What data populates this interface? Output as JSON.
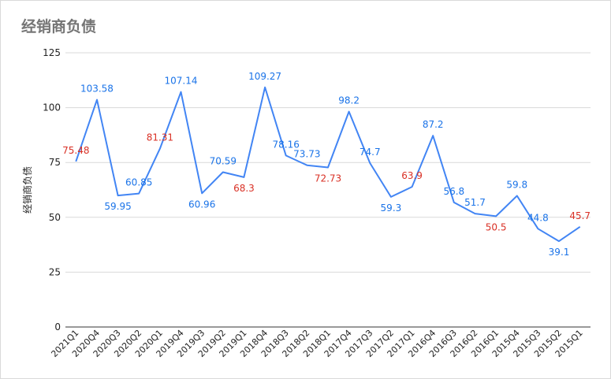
{
  "chart_data": {
    "type": "line",
    "title": "经销商负债",
    "ylabel": "经销商负债",
    "xlabel": "",
    "ylim": [
      0,
      125
    ],
    "yticks": [
      0,
      25,
      50,
      75,
      100,
      125
    ],
    "grid": true,
    "legend": "none",
    "categories": [
      "2021Q1",
      "2020Q4",
      "2020Q3",
      "2020Q2",
      "2020Q1",
      "2019Q4",
      "2019Q3",
      "2019Q2",
      "2019Q1",
      "2018Q4",
      "2018Q3",
      "2018Q2",
      "2018Q1",
      "2017Q4",
      "2017Q3",
      "2017Q2",
      "2017Q1",
      "2016Q4",
      "2016Q3",
      "2016Q2",
      "2016Q1",
      "2015Q4",
      "2015Q3",
      "2015Q2",
      "2015Q1"
    ],
    "series": [
      {
        "values": [
          75.48,
          103.58,
          59.95,
          60.85,
          81.31,
          107.14,
          60.96,
          70.59,
          68.3,
          109.27,
          78.16,
          73.73,
          72.73,
          98.2,
          74.7,
          59.3,
          63.9,
          87.2,
          56.8,
          51.7,
          50.5,
          59.8,
          44.8,
          39.1,
          45.7
        ],
        "labels": [
          "75.48",
          "103.58",
          "59.95",
          "60.85",
          "81.31",
          "107.14",
          "60.96",
          "70.59",
          "68.3",
          "109.27",
          "78.16",
          "73.73",
          "72.73",
          "98.2",
          "74.7",
          "59.3",
          "63.9",
          "87.2",
          "56.8",
          "51.7",
          "50.5",
          "59.8",
          "44.8",
          "39.1",
          "45.7"
        ],
        "label_colors": [
          "#d93025",
          "#1a73e8",
          "#1a73e8",
          "#1a73e8",
          "#d93025",
          "#1a73e8",
          "#1a73e8",
          "#1a73e8",
          "#d93025",
          "#1a73e8",
          "#1a73e8",
          "#1a73e8",
          "#d93025",
          "#1a73e8",
          "#1a73e8",
          "#1a73e8",
          "#d93025",
          "#1a73e8",
          "#1a73e8",
          "#1a73e8",
          "#d93025",
          "#1a73e8",
          "#1a73e8",
          "#1a73e8",
          "#d93025"
        ]
      }
    ],
    "colors": {
      "line": "#4285f4",
      "up_label": "#1a73e8",
      "down_label": "#d93025",
      "grid": "#d9d9d9",
      "axis": "#333333"
    }
  }
}
